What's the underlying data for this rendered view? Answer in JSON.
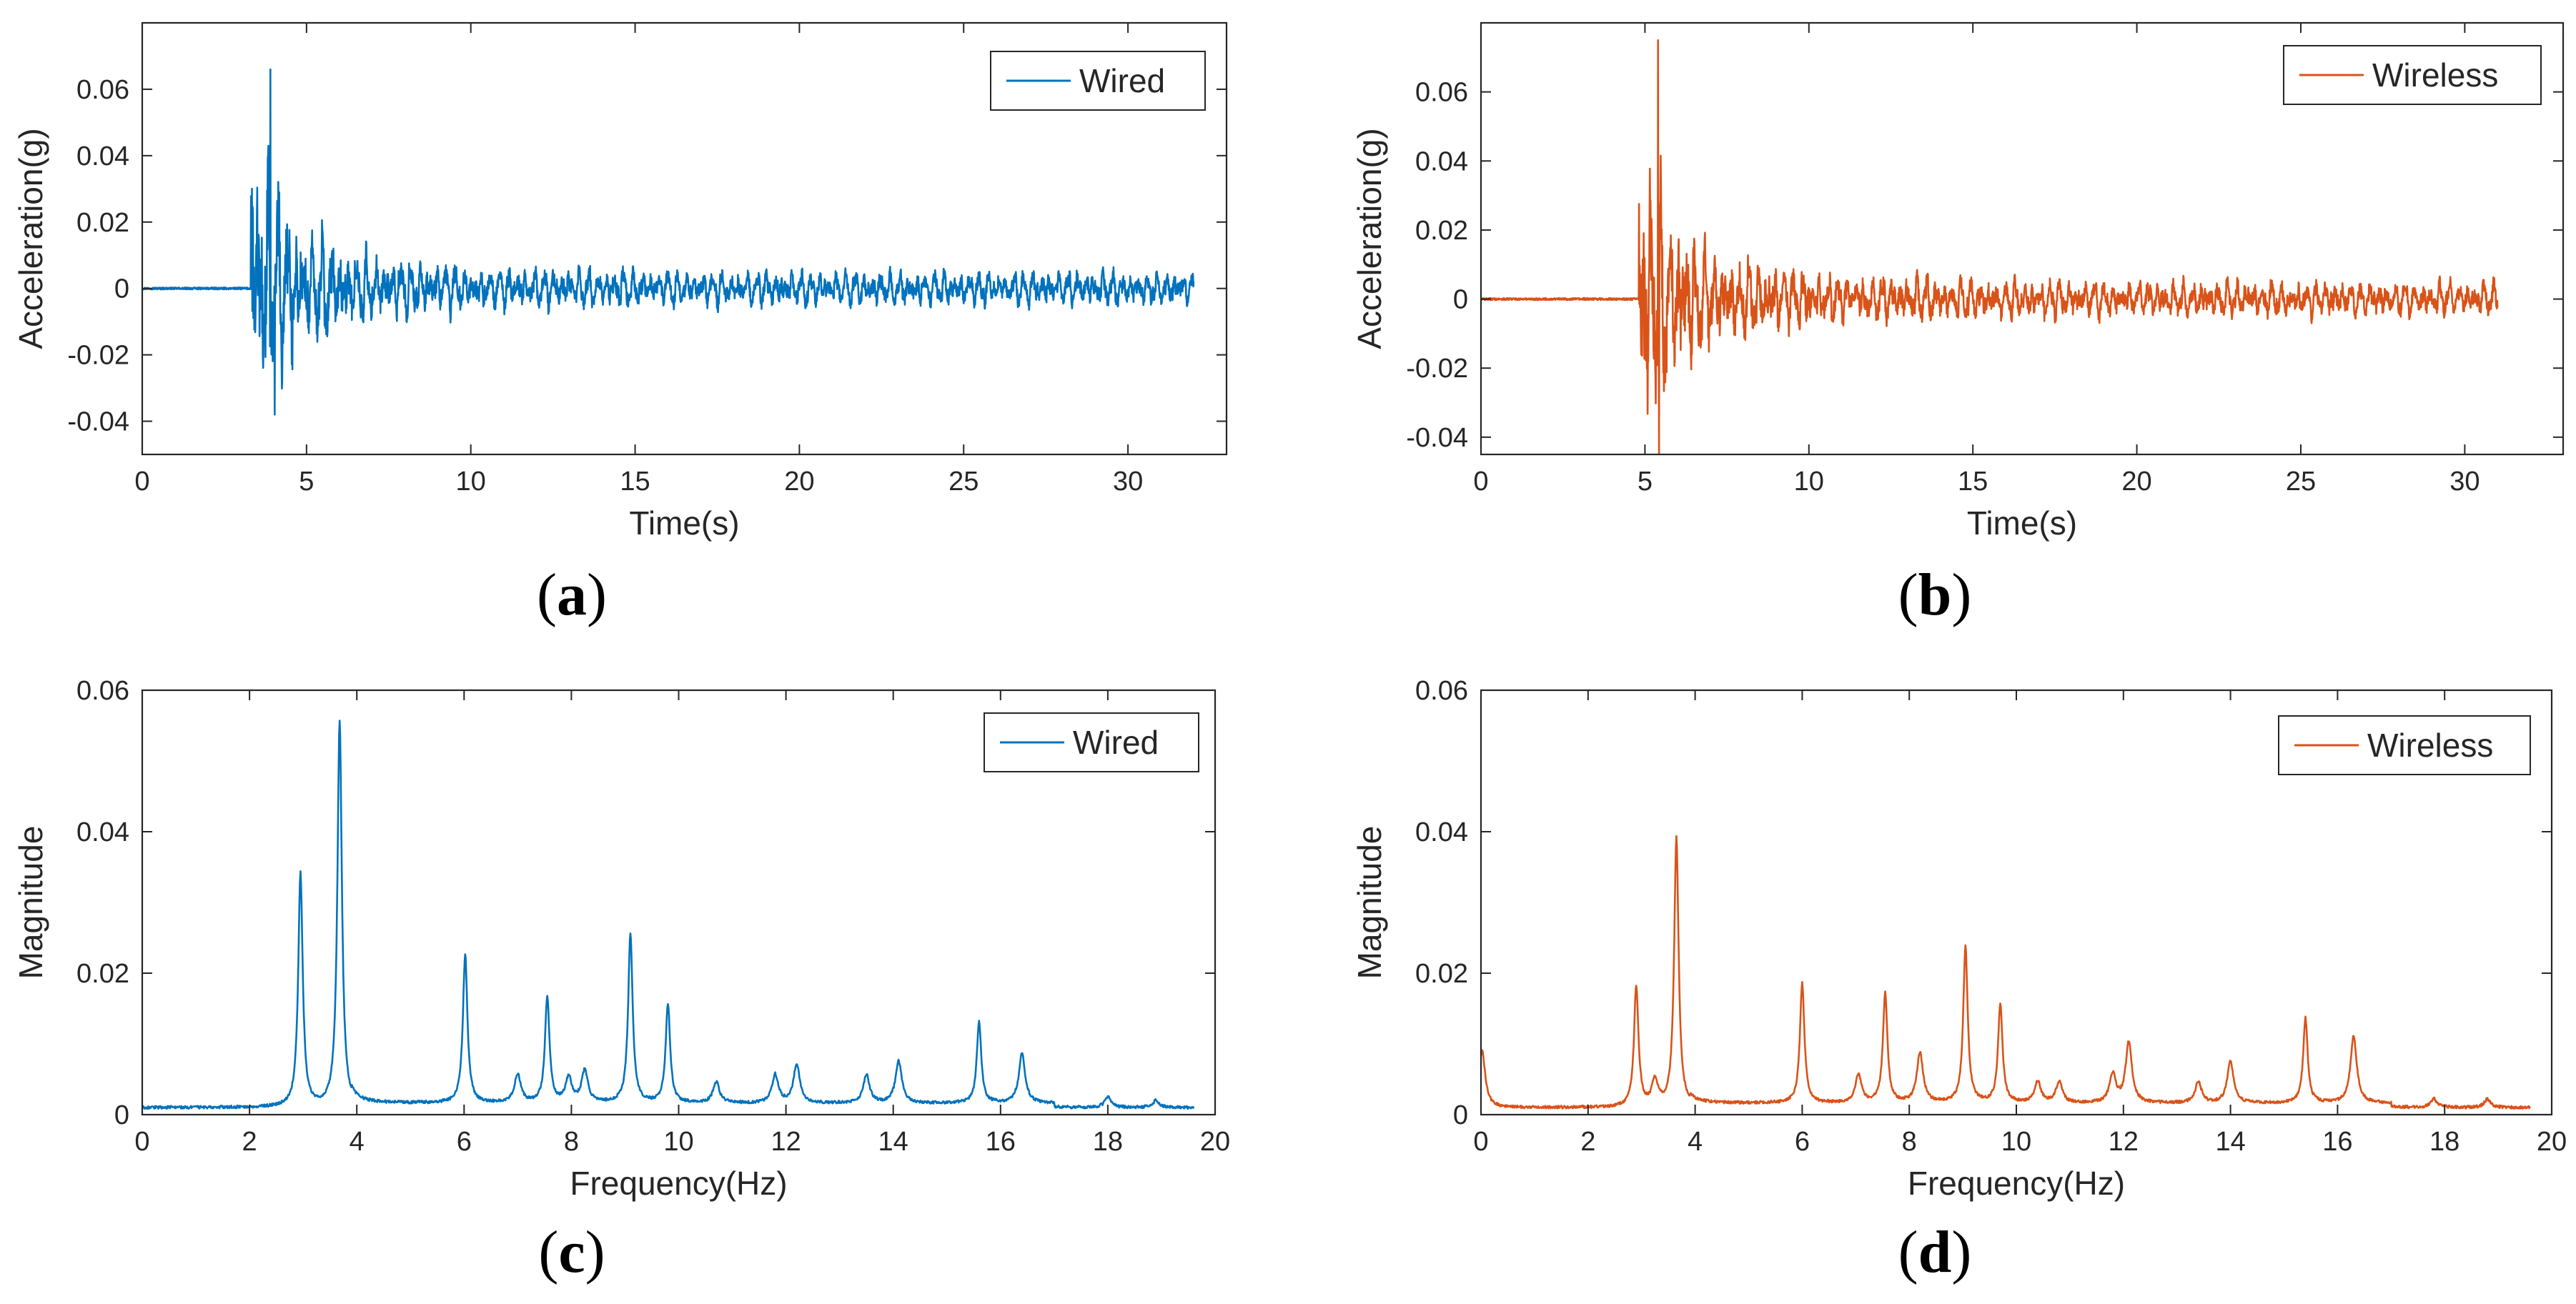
{
  "chart_data": [
    {
      "id": "a",
      "type": "line",
      "panel_label": "(a)",
      "panel_letter": "a",
      "xlabel": "Time(s)",
      "ylabel": "Acceleration(g)",
      "xlim": [
        0,
        33
      ],
      "ylim": [
        -0.05,
        0.08
      ],
      "xticks": [
        0,
        5,
        10,
        15,
        20,
        25,
        30
      ],
      "xtick_labels": [
        "0",
        "5",
        "10",
        "15",
        "20",
        "25",
        "30"
      ],
      "yticks": [
        -0.04,
        -0.02,
        0,
        0.02,
        0.04,
        0.06
      ],
      "ytick_labels": [
        "-0.04",
        "-0.02",
        "0",
        "0.02",
        "0.04",
        "0.06"
      ],
      "grid": false,
      "legend": "Wired",
      "legend_location": "top-right",
      "color": "#0072bd",
      "series": [
        {
          "name": "Wired",
          "signal": "decaying-vibration",
          "x_start": 0,
          "x_end": 32,
          "onset_time": 3.3,
          "peak_positive": 0.066,
          "peak_positive_time": 3.9,
          "peak_negative": -0.038,
          "peak_negative_time": 4.0,
          "steady_amplitude": 0.004
        }
      ]
    },
    {
      "id": "b",
      "type": "line",
      "panel_label": "(b)",
      "panel_letter": "b",
      "xlabel": "Time(s)",
      "ylabel": "Acceleration(g)",
      "xlim": [
        0,
        33
      ],
      "ylim": [
        -0.045,
        0.08
      ],
      "xticks": [
        0,
        5,
        10,
        15,
        20,
        25,
        30
      ],
      "xtick_labels": [
        "0",
        "5",
        "10",
        "15",
        "20",
        "25",
        "30"
      ],
      "yticks": [
        -0.04,
        -0.02,
        0,
        0.02,
        0.04,
        0.06
      ],
      "ytick_labels": [
        "-0.04",
        "-0.02",
        "0",
        "0.02",
        "0.04",
        "0.06"
      ],
      "grid": false,
      "legend": "Wireless",
      "legend_location": "top-right",
      "color": "#d95319",
      "series": [
        {
          "name": "Wireless",
          "signal": "decaying-vibration",
          "x_start": 0,
          "x_end": 31,
          "onset_time": 4.8,
          "peak_positive": 0.075,
          "peak_positive_time": 5.4,
          "peak_negative": -0.045,
          "peak_negative_time": 5.4,
          "steady_amplitude": 0.004
        }
      ]
    },
    {
      "id": "c",
      "type": "line",
      "panel_label": "(c)",
      "panel_letter": "c",
      "xlabel": "Frequency(Hz)",
      "ylabel": "Magnitude",
      "xlim": [
        0,
        20
      ],
      "ylim": [
        0,
        0.06
      ],
      "xticks": [
        0,
        2,
        4,
        6,
        8,
        10,
        12,
        14,
        16,
        18,
        20
      ],
      "xtick_labels": [
        "0",
        "2",
        "4",
        "6",
        "8",
        "10",
        "12",
        "14",
        "16",
        "18",
        "20"
      ],
      "yticks": [
        0,
        0.02,
        0.04,
        0.06
      ],
      "ytick_labels": [
        "0",
        "0.02",
        "0.04",
        "0.06"
      ],
      "grid": false,
      "legend": "Wired",
      "legend_location": "top-right",
      "color": "#0072bd",
      "series": [
        {
          "name": "Wired",
          "peaks": [
            {
              "f": 2.95,
              "a": 0.033
            },
            {
              "f": 3.68,
              "a": 0.0545
            },
            {
              "f": 6.02,
              "a": 0.021
            },
            {
              "f": 7.0,
              "a": 0.004
            },
            {
              "f": 7.55,
              "a": 0.015
            },
            {
              "f": 7.95,
              "a": 0.0035
            },
            {
              "f": 8.25,
              "a": 0.0045
            },
            {
              "f": 9.1,
              "a": 0.024
            },
            {
              "f": 9.8,
              "a": 0.014
            },
            {
              "f": 10.7,
              "a": 0.003
            },
            {
              "f": 11.8,
              "a": 0.004
            },
            {
              "f": 12.2,
              "a": 0.0055
            },
            {
              "f": 13.5,
              "a": 0.004
            },
            {
              "f": 14.1,
              "a": 0.006
            },
            {
              "f": 15.6,
              "a": 0.0115
            },
            {
              "f": 16.4,
              "a": 0.007
            },
            {
              "f": 18.0,
              "a": 0.0015
            },
            {
              "f": 18.9,
              "a": 0.001
            }
          ]
        }
      ]
    },
    {
      "id": "d",
      "type": "line",
      "panel_label": "(d)",
      "panel_letter": "d",
      "xlabel": "Frequency(Hz)",
      "ylabel": "Magnitude",
      "xlim": [
        0,
        20
      ],
      "ylim": [
        0,
        0.06
      ],
      "xticks": [
        0,
        2,
        4,
        6,
        8,
        10,
        12,
        14,
        16,
        18,
        20
      ],
      "xtick_labels": [
        "0",
        "2",
        "4",
        "6",
        "8",
        "10",
        "12",
        "14",
        "16",
        "18",
        "20"
      ],
      "yticks": [
        0,
        0.02,
        0.04,
        0.06
      ],
      "ytick_labels": [
        "0",
        "0.02",
        "0.04",
        "0.06"
      ],
      "grid": false,
      "legend": "Wireless",
      "legend_location": "top-right",
      "color": "#d95319",
      "series": [
        {
          "name": "Wireless",
          "peaks": [
            {
              "f": 0.02,
              "a": 0.008
            },
            {
              "f": 2.9,
              "a": 0.017
            },
            {
              "f": 3.25,
              "a": 0.0035
            },
            {
              "f": 3.65,
              "a": 0.038
            },
            {
              "f": 6.0,
              "a": 0.017
            },
            {
              "f": 7.05,
              "a": 0.004
            },
            {
              "f": 7.55,
              "a": 0.0155
            },
            {
              "f": 8.2,
              "a": 0.007
            },
            {
              "f": 9.05,
              "a": 0.022
            },
            {
              "f": 9.7,
              "a": 0.014
            },
            {
              "f": 10.4,
              "a": 0.003
            },
            {
              "f": 10.8,
              "a": 0.003
            },
            {
              "f": 11.8,
              "a": 0.004
            },
            {
              "f": 12.1,
              "a": 0.0085
            },
            {
              "f": 13.4,
              "a": 0.003
            },
            {
              "f": 14.0,
              "a": 0.006
            },
            {
              "f": 15.4,
              "a": 0.012
            },
            {
              "f": 16.3,
              "a": 0.0095
            },
            {
              "f": 17.8,
              "a": 0.0012
            },
            {
              "f": 18.8,
              "a": 0.0012
            }
          ]
        }
      ]
    }
  ]
}
